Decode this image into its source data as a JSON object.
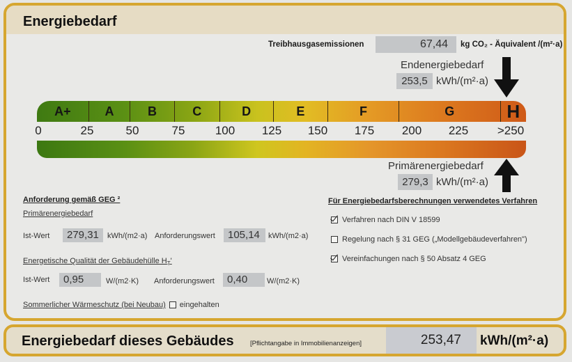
{
  "header": {
    "title": "Energiebedarf"
  },
  "emissions": {
    "label": "Treibhausgasemissionen",
    "value": "67,44",
    "unit": "kg CO₂ - Äquivalent  /(m²·a)"
  },
  "end_energy": {
    "label": "Endenergiebedarf",
    "value": "253,5",
    "unit": "kWh/(m²·a)",
    "arrow_icon": "arrow-down-icon"
  },
  "scale": {
    "classes": [
      {
        "label": "A+",
        "from": 0,
        "to": 30
      },
      {
        "label": "A",
        "from": 30,
        "to": 50
      },
      {
        "label": "B",
        "from": 50,
        "to": 75
      },
      {
        "label": "C",
        "from": 75,
        "to": 100
      },
      {
        "label": "D",
        "from": 100,
        "to": 130
      },
      {
        "label": "E",
        "from": 130,
        "to": 160
      },
      {
        "label": "F",
        "from": 160,
        "to": 200
      },
      {
        "label": "G",
        "from": 200,
        "to": 250
      },
      {
        "label": "H",
        "from": 250,
        "to": 265
      }
    ],
    "ticks": [
      "0",
      "25",
      "50",
      "75",
      "100",
      "125",
      "150",
      "175",
      "200",
      "225",
      ">250"
    ],
    "colors": {
      "start": "#3f7a12",
      "mid": "#e2bc24",
      "end": "#cf5a18"
    }
  },
  "primary_energy": {
    "label": "Primärenergiebedarf",
    "value": "279,3",
    "unit": "kWh/(m²·a)",
    "arrow_icon": "arrow-up-icon"
  },
  "requirements": {
    "heading": "Anforderung gemäß GEG ²",
    "primary": {
      "heading": "Primärenergiebedarf",
      "actual_label": "Ist-Wert",
      "actual_value": "279,31",
      "actual_unit": "kWh/(m2·a)",
      "required_label": "Anforderungswert",
      "required_value": "105,14",
      "required_unit": "kWh/(m2·a)"
    },
    "envelope": {
      "heading": "Energetische Qualität der Gebäudehülle H",
      "heading_sub": "T",
      "heading_suffix": "'",
      "actual_label": "Ist-Wert",
      "actual_value": "0,95",
      "actual_unit": "W/(m2·K)",
      "required_label": "Anforderungswert",
      "required_value": "0,40",
      "required_unit": "W/(m2·K)"
    },
    "summer": {
      "label": "Sommerlicher Wärmeschutz (bei Neubau)",
      "checkbox_label": "eingehalten",
      "checked": false
    }
  },
  "methods": {
    "heading": "Für Energiebedarfsberechnungen verwendetes Verfahren",
    "items": [
      {
        "label": "Verfahren nach DIN V 18599",
        "checked": true
      },
      {
        "label": "Regelung nach § 31 GEG („Modellgebäudeverfahren\")",
        "checked": false
      },
      {
        "label": "Vereinfachungen nach § 50 Absatz 4 GEG",
        "checked": true
      }
    ]
  },
  "summary": {
    "title": "Energiebedarf dieses Gebäudes",
    "note": "[Pflichtangabe in Immobilienanzeigen]",
    "value": "253,47",
    "unit": "kWh/(m²·a)"
  }
}
